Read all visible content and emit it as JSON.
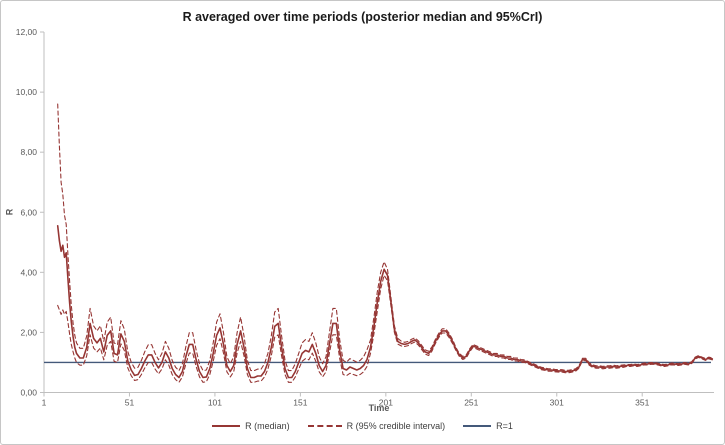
{
  "chart_data": {
    "type": "line",
    "title": "R averaged over time periods (posterior median and 95%CrI)",
    "xlabel": "Time",
    "ylabel": "R",
    "xlim": [
      1,
      393
    ],
    "ylim": [
      0,
      12
    ],
    "grid": false,
    "x_ticks": [
      1,
      51,
      101,
      151,
      201,
      251,
      301,
      351
    ],
    "y_tick_values": [
      0,
      2,
      4,
      6,
      8,
      10,
      12
    ],
    "y_tick_labels": [
      "0,00",
      "2,00",
      "4,00",
      "6,00",
      "8,00",
      "10,00",
      "12,00"
    ],
    "legend_position": "bottom",
    "colors": {
      "series_red": "#963634",
      "reference_blue": "#44597a",
      "axis_line": "#bfbfbf",
      "tick_text": "#595959",
      "title_text": "#1a1a1a"
    },
    "x": [
      9,
      10,
      11,
      12,
      13,
      14,
      15,
      16,
      17,
      18,
      19,
      20,
      22,
      24,
      26,
      28,
      30,
      32,
      34,
      36,
      38,
      40,
      42,
      44,
      46,
      48,
      50,
      52,
      54,
      56,
      58,
      60,
      62,
      64,
      66,
      68,
      70,
      72,
      74,
      76,
      78,
      80,
      82,
      84,
      86,
      88,
      90,
      92,
      94,
      96,
      98,
      100,
      102,
      104,
      106,
      108,
      110,
      112,
      114,
      116,
      118,
      120,
      122,
      124,
      126,
      128,
      130,
      132,
      134,
      136,
      138,
      140,
      142,
      144,
      146,
      148,
      150,
      152,
      154,
      156,
      158,
      160,
      162,
      164,
      166,
      168,
      170,
      172,
      174,
      176,
      178,
      180,
      182,
      184,
      186,
      188,
      190,
      192,
      194,
      196,
      198,
      200,
      202,
      204,
      206,
      208,
      210,
      212,
      214,
      216,
      218,
      220,
      222,
      224,
      226,
      228,
      230,
      232,
      234,
      236,
      238,
      240,
      242,
      244,
      246,
      248,
      250,
      252,
      254,
      256,
      258,
      260,
      262,
      264,
      266,
      268,
      270,
      272,
      274,
      276,
      278,
      280,
      282,
      284,
      286,
      288,
      290,
      292,
      294,
      296,
      298,
      300,
      302,
      304,
      306,
      308,
      310,
      312,
      314,
      316,
      318,
      320,
      322,
      324,
      326,
      328,
      330,
      332,
      334,
      336,
      338,
      340,
      342,
      344,
      346,
      348,
      350,
      352,
      354,
      356,
      358,
      360,
      362,
      364,
      366,
      368,
      370,
      372,
      374,
      376,
      378,
      380,
      382,
      384,
      386,
      388,
      390,
      392
    ],
    "series": [
      {
        "name": "R (median)",
        "style": "solid",
        "color": "#963634",
        "values": [
          5.55,
          5.05,
          4.7,
          4.9,
          4.5,
          4.65,
          3.8,
          3.0,
          2.35,
          1.85,
          1.5,
          1.3,
          1.15,
          1.15,
          1.5,
          2.3,
          1.8,
          1.65,
          1.8,
          1.35,
          1.9,
          2.05,
          1.3,
          1.25,
          1.95,
          1.7,
          1.05,
          0.75,
          0.57,
          0.6,
          0.8,
          1.05,
          1.25,
          1.25,
          1.0,
          0.82,
          1.0,
          1.35,
          1.15,
          0.8,
          0.6,
          0.5,
          0.7,
          1.2,
          1.6,
          1.6,
          1.1,
          0.7,
          0.5,
          0.52,
          0.8,
          1.3,
          1.9,
          2.15,
          1.6,
          0.9,
          0.7,
          0.9,
          1.6,
          2.05,
          1.5,
          0.8,
          0.5,
          0.5,
          0.55,
          0.55,
          0.7,
          1.0,
          1.5,
          2.2,
          2.3,
          1.5,
          0.8,
          0.5,
          0.5,
          0.7,
          1.0,
          1.3,
          1.4,
          1.35,
          1.6,
          1.3,
          0.9,
          0.7,
          0.9,
          1.6,
          2.3,
          2.3,
          1.4,
          0.8,
          0.75,
          0.85,
          0.8,
          0.75,
          0.8,
          0.9,
          1.1,
          1.5,
          2.2,
          3.0,
          3.7,
          4.1,
          3.9,
          3.0,
          2.1,
          1.7,
          1.63,
          1.6,
          1.63,
          1.7,
          1.75,
          1.65,
          1.5,
          1.35,
          1.3,
          1.45,
          1.7,
          1.9,
          2.05,
          2.05,
          1.9,
          1.7,
          1.45,
          1.25,
          1.15,
          1.2,
          1.4,
          1.55,
          1.5,
          1.45,
          1.4,
          1.35,
          1.3,
          1.25,
          1.25,
          1.2,
          1.2,
          1.15,
          1.15,
          1.1,
          1.1,
          1.05,
          1.05,
          1.0,
          0.95,
          0.9,
          0.85,
          0.8,
          0.78,
          0.75,
          0.75,
          0.73,
          0.72,
          0.72,
          0.7,
          0.7,
          0.72,
          0.75,
          0.85,
          1.1,
          1.1,
          0.95,
          0.88,
          0.85,
          0.85,
          0.83,
          0.85,
          0.85,
          0.87,
          0.85,
          0.87,
          0.88,
          0.9,
          0.9,
          0.92,
          0.9,
          0.92,
          0.95,
          0.95,
          0.97,
          0.97,
          0.95,
          0.92,
          0.9,
          0.92,
          0.95,
          0.95,
          0.93,
          0.95,
          0.97,
          0.95,
          1.0,
          1.15,
          1.2,
          1.15,
          1.1,
          1.15,
          1.12
        ]
      },
      {
        "name": "R (95% credible interval) upper",
        "style": "dashed",
        "color": "#963634",
        "values": [
          9.6,
          8.2,
          7.0,
          6.6,
          5.9,
          5.6,
          4.6,
          3.7,
          2.9,
          2.3,
          1.9,
          1.65,
          1.47,
          1.47,
          1.88,
          2.8,
          2.22,
          2.05,
          2.22,
          1.7,
          2.34,
          2.51,
          1.65,
          1.59,
          2.39,
          2.11,
          1.36,
          1.01,
          0.81,
          0.84,
          1.07,
          1.36,
          1.59,
          1.59,
          1.3,
          1.09,
          1.3,
          1.7,
          1.47,
          1.07,
          0.84,
          0.73,
          0.96,
          1.53,
          1.99,
          1.99,
          1.42,
          0.96,
          0.73,
          0.75,
          1.07,
          1.65,
          2.34,
          2.62,
          1.99,
          1.19,
          0.96,
          1.19,
          1.99,
          2.51,
          1.88,
          1.07,
          0.73,
          0.73,
          0.78,
          0.78,
          0.96,
          1.3,
          1.88,
          2.68,
          2.8,
          1.88,
          1.07,
          0.73,
          0.73,
          0.96,
          1.3,
          1.65,
          1.76,
          1.7,
          1.99,
          1.65,
          1.19,
          0.96,
          1.19,
          1.99,
          2.8,
          2.8,
          1.76,
          1.07,
          1.01,
          1.13,
          1.07,
          1.01,
          1.07,
          1.19,
          1.42,
          1.75,
          2.5,
          3.35,
          4.0,
          4.35,
          4.1,
          3.15,
          2.22,
          1.8,
          1.71,
          1.67,
          1.7,
          1.77,
          1.82,
          1.72,
          1.57,
          1.42,
          1.37,
          1.52,
          1.77,
          1.97,
          2.12,
          2.12,
          1.97,
          1.77,
          1.5,
          1.3,
          1.2,
          1.25,
          1.45,
          1.6,
          1.55,
          1.5,
          1.45,
          1.4,
          1.35,
          1.3,
          1.3,
          1.25,
          1.25,
          1.2,
          1.2,
          1.15,
          1.15,
          1.1,
          1.09,
          1.04,
          0.99,
          0.94,
          0.89,
          0.84,
          0.82,
          0.79,
          0.79,
          0.77,
          0.76,
          0.76,
          0.74,
          0.74,
          0.76,
          0.79,
          0.89,
          1.14,
          1.14,
          0.99,
          0.92,
          0.89,
          0.89,
          0.87,
          0.89,
          0.89,
          0.91,
          0.89,
          0.91,
          0.92,
          0.93,
          0.93,
          0.95,
          0.93,
          0.95,
          0.98,
          0.98,
          1.0,
          1.0,
          0.98,
          0.95,
          0.93,
          0.95,
          0.98,
          0.98,
          0.96,
          0.98,
          1.0,
          0.98,
          1.03,
          1.18,
          1.23,
          1.18,
          1.13,
          1.18,
          1.15
        ]
      },
      {
        "name": "R (95% credible interval) lower",
        "style": "dashed",
        "color": "#963634",
        "values": [
          2.9,
          2.75,
          2.6,
          2.75,
          2.6,
          2.7,
          2.35,
          1.95,
          1.6,
          1.35,
          1.15,
          1.0,
          0.91,
          0.91,
          1.22,
          1.92,
          1.48,
          1.35,
          1.48,
          1.09,
          1.57,
          1.7,
          1.04,
          1.0,
          1.62,
          1.4,
          0.82,
          0.56,
          0.4,
          0.43,
          0.6,
          0.82,
          1.0,
          1.0,
          0.78,
          0.62,
          0.78,
          1.09,
          0.91,
          0.6,
          0.43,
          0.34,
          0.52,
          0.96,
          1.31,
          1.31,
          0.87,
          0.52,
          0.34,
          0.36,
          0.6,
          1.04,
          1.57,
          1.79,
          1.31,
          0.69,
          0.52,
          0.69,
          1.31,
          1.7,
          1.22,
          0.6,
          0.34,
          0.34,
          0.38,
          0.38,
          0.52,
          0.78,
          1.22,
          1.84,
          1.92,
          1.22,
          0.6,
          0.34,
          0.34,
          0.52,
          0.78,
          1.04,
          1.13,
          1.09,
          1.31,
          1.04,
          0.69,
          0.52,
          0.69,
          1.31,
          1.92,
          1.92,
          1.13,
          0.6,
          0.56,
          0.64,
          0.6,
          0.56,
          0.6,
          0.69,
          0.87,
          1.3,
          1.95,
          2.7,
          3.45,
          3.9,
          3.72,
          2.87,
          2.0,
          1.61,
          1.55,
          1.53,
          1.56,
          1.63,
          1.68,
          1.58,
          1.43,
          1.28,
          1.23,
          1.38,
          1.63,
          1.83,
          1.98,
          1.98,
          1.83,
          1.63,
          1.4,
          1.2,
          1.1,
          1.15,
          1.35,
          1.5,
          1.45,
          1.4,
          1.35,
          1.3,
          1.25,
          1.2,
          1.2,
          1.15,
          1.15,
          1.1,
          1.1,
          1.05,
          1.05,
          1.0,
          1.01,
          0.96,
          0.91,
          0.86,
          0.81,
          0.76,
          0.74,
          0.71,
          0.71,
          0.69,
          0.68,
          0.68,
          0.66,
          0.66,
          0.68,
          0.71,
          0.81,
          1.06,
          1.06,
          0.91,
          0.84,
          0.81,
          0.81,
          0.79,
          0.81,
          0.81,
          0.83,
          0.81,
          0.83,
          0.84,
          0.87,
          0.87,
          0.89,
          0.87,
          0.89,
          0.92,
          0.92,
          0.94,
          0.94,
          0.92,
          0.89,
          0.87,
          0.89,
          0.92,
          0.92,
          0.9,
          0.92,
          0.94,
          0.92,
          0.97,
          1.12,
          1.17,
          1.12,
          1.07,
          1.12,
          1.09
        ]
      }
    ],
    "reference_line": {
      "label": "R=1",
      "value": 1,
      "color": "#44597a"
    },
    "legend": [
      {
        "label": "R (median)",
        "style": "solid",
        "color": "#963634"
      },
      {
        "label": "R (95% credible interval)",
        "style": "dashed",
        "color": "#963634"
      },
      {
        "label": "R=1",
        "style": "solid",
        "color": "#44597a"
      }
    ]
  }
}
